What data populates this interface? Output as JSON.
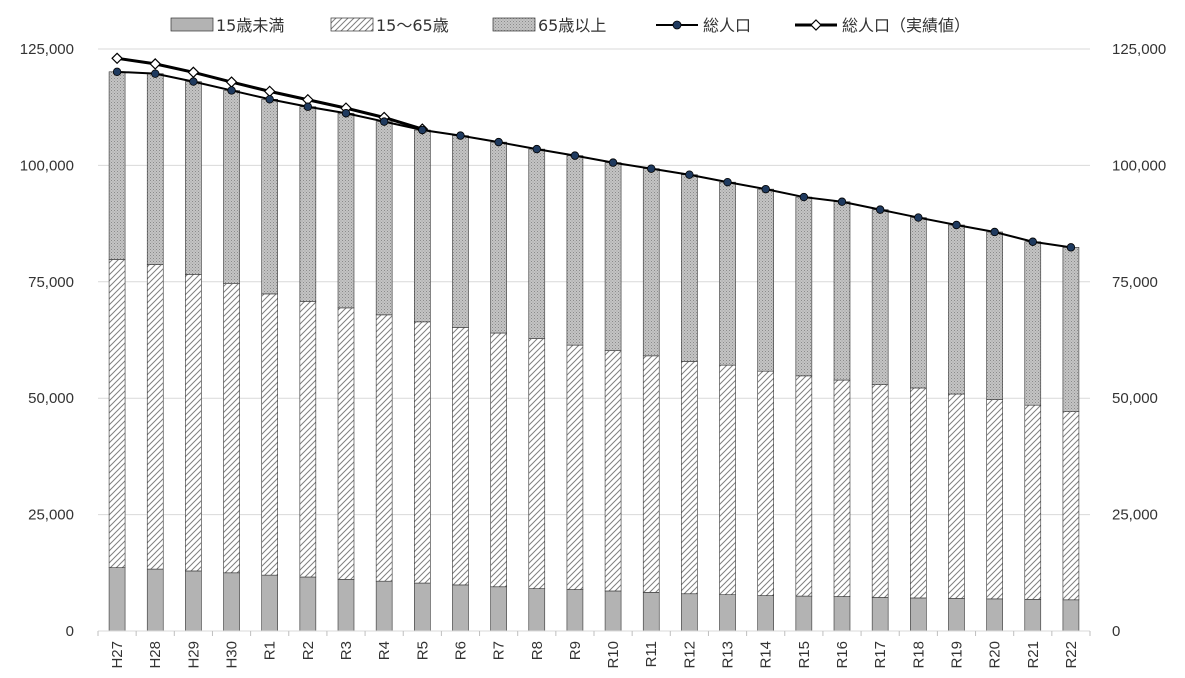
{
  "chart_data": {
    "type": "bar",
    "stacked": true,
    "categories": [
      "H27",
      "H28",
      "H29",
      "H30",
      "R1",
      "R2",
      "R3",
      "R4",
      "R5",
      "R6",
      "R7",
      "R8",
      "R9",
      "R10",
      "R11",
      "R12",
      "R13",
      "R14",
      "R15",
      "R16",
      "R17",
      "R18",
      "R19",
      "R20",
      "R21",
      "R22"
    ],
    "series": [
      {
        "name": "15歳未満",
        "kind": "bar",
        "fill": "solid",
        "color": "#b3b3b3",
        "values": [
          13600,
          13300,
          12900,
          12500,
          12000,
          11600,
          11100,
          10700,
          10300,
          9900,
          9500,
          9100,
          8900,
          8600,
          8300,
          8000,
          7800,
          7600,
          7500,
          7400,
          7200,
          7100,
          7000,
          6900,
          6800,
          6700
        ]
      },
      {
        "name": "15〜65歳",
        "kind": "bar",
        "fill": "hatch",
        "color": "#ffffff",
        "values": [
          66200,
          65400,
          63700,
          62100,
          60400,
          59200,
          58300,
          57200,
          56100,
          55300,
          54500,
          53700,
          52500,
          51600,
          50800,
          49900,
          49300,
          48200,
          47300,
          46500,
          45700,
          45100,
          43900,
          42800,
          41700,
          40400
        ]
      },
      {
        "name": "65歳以上",
        "kind": "bar",
        "fill": "dots",
        "color": "#bdbdbd",
        "values": [
          40300,
          41000,
          41400,
          41500,
          41800,
          41800,
          41800,
          41500,
          41200,
          41200,
          41000,
          40700,
          40700,
          40400,
          40200,
          40100,
          39300,
          39100,
          38400,
          38300,
          37600,
          36600,
          36300,
          36000,
          35100,
          35300
        ]
      },
      {
        "name": "総人口",
        "kind": "line",
        "marker": "circle",
        "color": "#000000",
        "values": [
          120100,
          119700,
          118000,
          116100,
          114200,
          112600,
          111200,
          109400,
          107600,
          106400,
          105000,
          103500,
          102100,
          100600,
          99300,
          98000,
          96400,
          94900,
          93200,
          92200,
          90500,
          88800,
          87200,
          85700,
          83600,
          82400
        ]
      },
      {
        "name": "総人口（実績値）",
        "kind": "line",
        "marker": "diamond",
        "color": "#000000",
        "values": [
          123000,
          121800,
          120000,
          117900,
          115900,
          114100,
          112300,
          110300,
          107800,
          null,
          null,
          null,
          null,
          null,
          null,
          null,
          null,
          null,
          null,
          null,
          null,
          null,
          null,
          null,
          null,
          null
        ]
      }
    ],
    "ylim": [
      0,
      125000
    ],
    "yticks": [
      "0",
      "25,000",
      "50,000",
      "75,000",
      "100,000",
      "125,000"
    ],
    "y2ticks": [
      "0",
      "25,000",
      "50,000",
      "75,000",
      "100,000",
      "125,000"
    ],
    "grid": true,
    "legend": "top"
  }
}
